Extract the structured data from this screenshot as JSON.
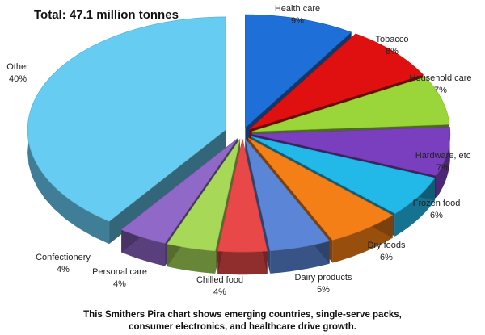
{
  "chart_data": {
    "type": "pie",
    "title": "Total: 47.1 million tonnes",
    "exploded": true,
    "three_d": true,
    "slices": [
      {
        "label": "Health care",
        "value": 9,
        "display": "9%",
        "color": "#1f6fd8"
      },
      {
        "label": "Tobacco",
        "value": 8,
        "display": "8%",
        "color": "#e01010"
      },
      {
        "label": "Household care",
        "value": 7,
        "display": "7%",
        "color": "#9ad63a"
      },
      {
        "label": "Hardware, etc",
        "value": 7,
        "display": "7%",
        "color": "#7a3fbf"
      },
      {
        "label": "Frozen food",
        "value": 6,
        "display": "6%",
        "color": "#22b8e8"
      },
      {
        "label": "Dry foods",
        "value": 6,
        "display": "6%",
        "color": "#f57f17"
      },
      {
        "label": "Dairy products",
        "value": 5,
        "display": "5%",
        "color": "#5b86d8"
      },
      {
        "label": "Chilled food",
        "value": 4,
        "display": "4%",
        "color": "#e84848"
      },
      {
        "label": "Personal care",
        "value": 4,
        "display": "4%",
        "color": "#a8d858"
      },
      {
        "label": "Confectionery",
        "value": 4,
        "display": "4%",
        "color": "#9068c8"
      },
      {
        "label": "Other",
        "value": 40,
        "display": "40%",
        "color": "#66ccf2"
      }
    ]
  },
  "caption": {
    "line1": "This Smithers Pira chart shows emerging countries, single-serve packs,",
    "line2": "consumer electronics, and healthcare drive growth."
  }
}
